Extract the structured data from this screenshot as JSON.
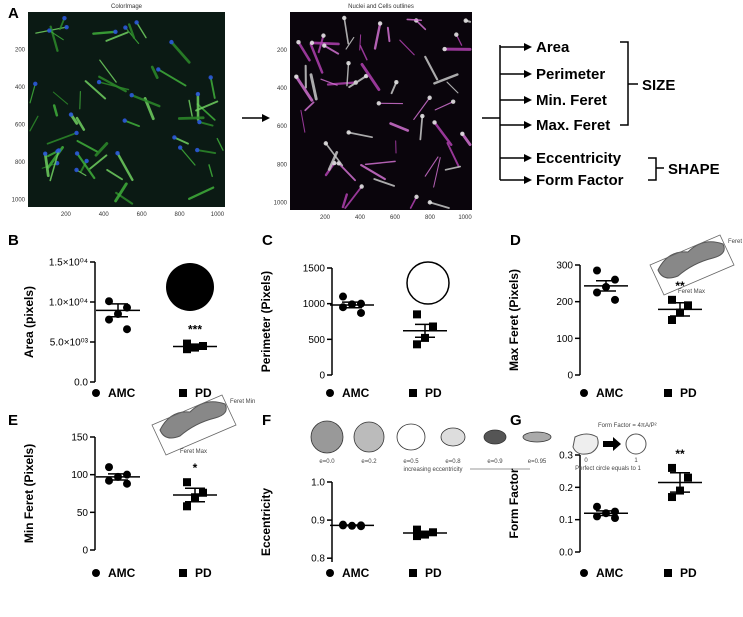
{
  "panel_a": {
    "label": "A",
    "images": [
      {
        "title": "ColorImage",
        "xticks": [
          200,
          400,
          600,
          800,
          1000
        ],
        "yticks": [
          200,
          400,
          600,
          800,
          1000
        ]
      },
      {
        "title": "Nuclei and Cells outlines",
        "xticks": [
          200,
          400,
          600,
          800,
          1000
        ],
        "yticks": [
          200,
          400,
          600,
          800,
          1000
        ]
      }
    ],
    "size_features": [
      "Area",
      "Perimeter",
      "Min. Feret",
      "Max. Feret"
    ],
    "shape_features": [
      "Eccentricity",
      "Form Factor"
    ],
    "size_label": "SIZE",
    "shape_label": "SHAPE"
  },
  "chart_data": [
    {
      "type": "dotplot",
      "panel": "B",
      "ylabel": "Area (pixels)",
      "ylim": [
        0,
        15000
      ],
      "yticks": [
        {
          "value": 0,
          "label": "0.0"
        },
        {
          "value": 5000,
          "label": "5.0×10⁰³"
        },
        {
          "value": 10000,
          "label": "1.0×10⁰⁴"
        },
        {
          "value": 15000,
          "label": "1.5×10⁰⁴"
        }
      ],
      "series": [
        {
          "name": "AMC",
          "color": "#000000",
          "values": [
            10100,
            9300,
            8500,
            7800,
            6600
          ],
          "mean": 8960,
          "sem": 800
        },
        {
          "name": "PD",
          "color": "#000000",
          "values": [
            4800,
            4500,
            4300,
            4100
          ],
          "mean": 4430,
          "sem": 300,
          "annotation": "***"
        }
      ]
    },
    {
      "type": "dotplot",
      "panel": "C",
      "ylabel": "Perimeter (Pixels)",
      "ylim": [
        0,
        1500
      ],
      "yticks": [
        0,
        500,
        1000,
        1500
      ],
      "series": [
        {
          "name": "AMC",
          "color": "#000000",
          "values": [
            1100,
            1000,
            990,
            950,
            870
          ],
          "mean": 982,
          "sem": 40
        },
        {
          "name": "PD",
          "color": "#000000",
          "values": [
            850,
            680,
            520,
            430
          ],
          "mean": 620,
          "sem": 90,
          "annotation": "***"
        }
      ]
    },
    {
      "type": "dotplot",
      "panel": "D",
      "ylabel": "Max Feret (Pixels)",
      "ylim": [
        0,
        300
      ],
      "yticks": [
        0,
        100,
        200,
        300
      ],
      "inset_labels": [
        "Feret Min",
        "Feret Max"
      ],
      "series": [
        {
          "name": "AMC",
          "color": "#000000",
          "values": [
            285,
            260,
            240,
            225,
            205
          ],
          "mean": 243,
          "sem": 14
        },
        {
          "name": "PD",
          "color": "#000000",
          "values": [
            205,
            190,
            170,
            150
          ],
          "mean": 179,
          "sem": 18,
          "annotation": "**"
        }
      ]
    },
    {
      "type": "dotplot",
      "panel": "E",
      "ylabel": "Min Feret (Pixels)",
      "ylim": [
        0,
        150
      ],
      "yticks": [
        0,
        50,
        100,
        150
      ],
      "inset_labels": [
        "Feret Min",
        "Feret Max"
      ],
      "series": [
        {
          "name": "AMC",
          "color": "#000000",
          "values": [
            110,
            100,
            97,
            92,
            88
          ],
          "mean": 97,
          "sem": 4
        },
        {
          "name": "PD",
          "color": "#000000",
          "values": [
            90,
            76,
            70,
            58
          ],
          "mean": 73,
          "sem": 9,
          "annotation": "*"
        }
      ]
    },
    {
      "type": "dotplot",
      "panel": "F",
      "ylabel": "Eccentricity",
      "ylim": [
        0.79,
        1.0
      ],
      "yticks": [
        0.8,
        0.9,
        {
          "value": 1,
          "label": "1.0"
        }
      ],
      "inset_labels": [
        "e=0.0",
        "e=0.2",
        "e=0.5",
        "e=0.8",
        "e=0.9",
        "e=0.95",
        "increasing eccentricity"
      ],
      "series": [
        {
          "name": "AMC",
          "color": "#000000",
          "values": [
            0.888,
            0.886,
            0.885,
            0.886,
            0.884
          ],
          "mean": 0.886,
          "sem": 0.001
        },
        {
          "name": "PD",
          "color": "#000000",
          "values": [
            0.875,
            0.868,
            0.862,
            0.858
          ],
          "mean": 0.866,
          "sem": 0.004
        }
      ]
    },
    {
      "type": "dotplot",
      "panel": "G",
      "ylabel": "Form Factor",
      "ylim": [
        0,
        0.3
      ],
      "yticks": [
        {
          "value": 0,
          "label": "0.0"
        },
        0.1,
        0.2,
        0.3
      ],
      "inset_labels": [
        "Form Factor = 4πA/P²",
        "0",
        "1",
        "Perfect circle equals to 1"
      ],
      "series": [
        {
          "name": "AMC",
          "color": "#000000",
          "values": [
            0.14,
            0.125,
            0.12,
            0.11,
            0.105
          ],
          "mean": 0.12,
          "sem": 0.007
        },
        {
          "name": "PD",
          "color": "#000000",
          "values": [
            0.26,
            0.23,
            0.19,
            0.17
          ],
          "mean": 0.215,
          "sem": 0.03,
          "annotation": "**"
        }
      ]
    }
  ]
}
